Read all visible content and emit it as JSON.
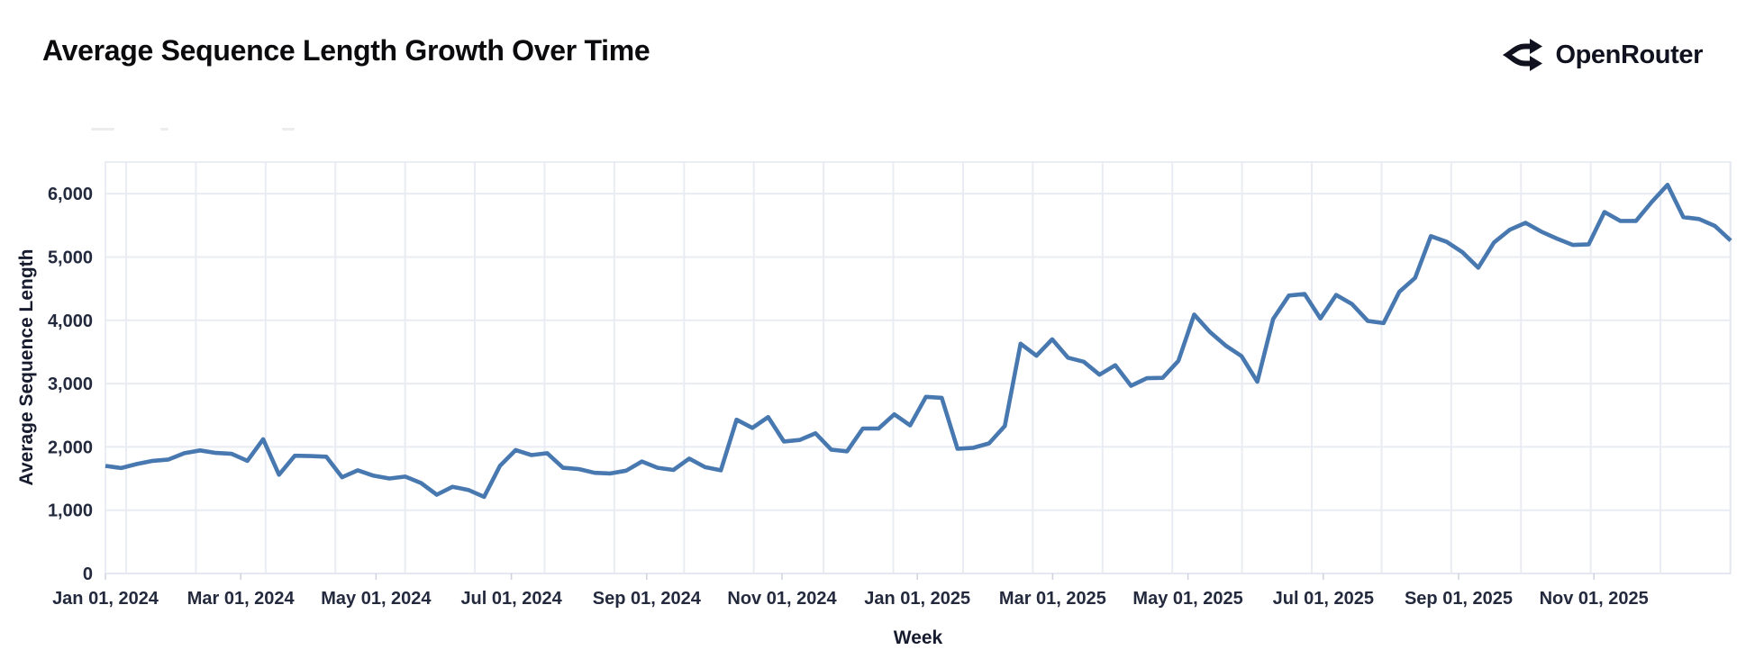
{
  "header": {
    "title": "Average Sequence Length Growth Over Time",
    "brand": "OpenRouter"
  },
  "chart_data": {
    "type": "line",
    "title": "Average Sequence Length Growth Over Time",
    "xlabel": "Week",
    "ylabel": "Average Sequence Length",
    "x_tick_labels": [
      "Jan 01, 2024",
      "Mar 01, 2024",
      "May 01, 2024",
      "Jul 01, 2024",
      "Sep 01, 2024",
      "Nov 01, 2024",
      "Jan 01, 2025",
      "Mar 01, 2025",
      "May 01, 2025",
      "Jul 01, 2025",
      "Sep 01, 2025",
      "Nov 01, 2025"
    ],
    "y_ticks": [
      0,
      1000,
      2000,
      3000,
      4000,
      5000,
      6000
    ],
    "ylim": [
      0,
      6500
    ],
    "grid": true,
    "x_minor_gridlines_monthly": 24,
    "legend": "none",
    "line_color": "#4878b0",
    "grid_color": "#e9ecf3",
    "tick_label_color": "#242a3e",
    "series": [
      {
        "name": "avg_sequence_length",
        "cadence_weeks": 1,
        "values": [
          1700,
          1665,
          1730,
          1780,
          1800,
          1900,
          1945,
          1905,
          1890,
          1780,
          2120,
          1560,
          1860,
          1855,
          1845,
          1520,
          1630,
          1545,
          1500,
          1530,
          1430,
          1245,
          1370,
          1320,
          1210,
          1700,
          1950,
          1870,
          1900,
          1670,
          1650,
          1590,
          1580,
          1625,
          1770,
          1670,
          1635,
          1815,
          1680,
          1630,
          2430,
          2300,
          2470,
          2085,
          2110,
          2215,
          1955,
          1930,
          2290,
          2290,
          2515,
          2340,
          2790,
          2775,
          1970,
          1985,
          2055,
          2330,
          3630,
          3440,
          3700,
          3410,
          3345,
          3140,
          3290,
          2965,
          3085,
          3090,
          3360,
          4090,
          3815,
          3600,
          3435,
          3030,
          4020,
          4390,
          4415,
          4030,
          4400,
          4255,
          3990,
          3955,
          4450,
          4670,
          5330,
          5240,
          5075,
          4830,
          5230,
          5430,
          5540,
          5400,
          5290,
          5190,
          5200,
          5710,
          5570,
          5570,
          5870,
          6140,
          5630,
          5600,
          5490,
          5260
        ]
      }
    ]
  }
}
